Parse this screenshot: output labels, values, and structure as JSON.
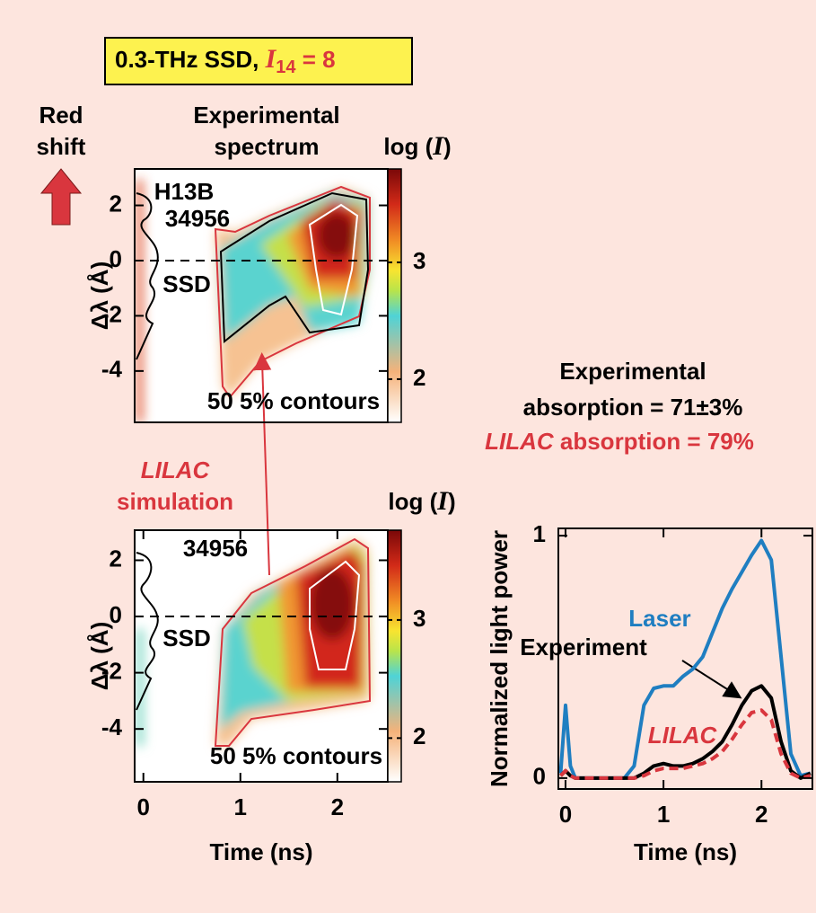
{
  "title_box": {
    "text": "0.3-THz SSD, ",
    "symbol": "I",
    "subscript": "14",
    "suffix": " = 8"
  },
  "red_shift_label": [
    "Red",
    "shift"
  ],
  "absorption": {
    "experimental": [
      "Experimental",
      "absorption = 71±3%"
    ],
    "lilac": [
      "LILAC",
      " absorption = 79%"
    ]
  },
  "chart_data": [
    {
      "type": "heatmap",
      "title": [
        "Experimental",
        "spectrum"
      ],
      "ylabel": "Δλ (Å)",
      "xlim": [
        -0.09,
        2.52
      ],
      "ylim": [
        -5.86,
        3.32
      ],
      "yticks": [
        2,
        0,
        -2,
        -4
      ],
      "colorbar": {
        "label": [
          "log (",
          "I",
          ")"
        ],
        "lim": [
          1.63,
          3.8
        ],
        "ticks": [
          3,
          2
        ]
      },
      "annotations": [
        "H13B",
        "34956",
        "SSD",
        "50 5% contours"
      ]
    },
    {
      "type": "heatmap",
      "title": [
        "LILAC",
        "simulation"
      ],
      "ylabel": "Δλ (Å)",
      "xlabel": "Time (ns)",
      "xlim": [
        -0.09,
        2.52
      ],
      "ylim": [
        -5.88,
        3.07
      ],
      "yticks": [
        2,
        0,
        -2,
        -4
      ],
      "xticks": [
        0,
        1,
        2
      ],
      "colorbar": {
        "label": [
          "log (",
          "I",
          ")"
        ],
        "lim": [
          1.63,
          3.76
        ],
        "ticks": [
          3,
          2
        ]
      },
      "annotations": [
        "34956",
        "SSD",
        "50 5% contours"
      ]
    },
    {
      "type": "line",
      "ylabel": "Normalized light power",
      "xlabel": "Time (ns)",
      "xlim": [
        -0.073,
        2.52
      ],
      "ylim": [
        -0.045,
        1.03
      ],
      "xticks": [
        0,
        1,
        2
      ],
      "yticks": [
        0,
        1
      ],
      "x": [
        -0.05,
        0,
        0.05,
        0.1,
        0.2,
        0.3,
        0.4,
        0.5,
        0.6,
        0.7,
        0.8,
        0.9,
        1.0,
        1.1,
        1.2,
        1.3,
        1.4,
        1.5,
        1.6,
        1.7,
        1.8,
        1.9,
        2.0,
        2.1,
        2.2,
        2.3,
        2.4,
        2.5
      ],
      "series": [
        {
          "name": "Laser",
          "color": "#1f7ec1",
          "style": "solid",
          "values": [
            0.02,
            0.3,
            0.05,
            0,
            0,
            0,
            0,
            0,
            0,
            0.05,
            0.3,
            0.37,
            0.38,
            0.38,
            0.42,
            0.45,
            0.5,
            0.6,
            0.7,
            0.78,
            0.85,
            0.92,
            0.98,
            0.9,
            0.5,
            0.1,
            0.01,
            0.02
          ]
        },
        {
          "name": "Experiment",
          "color": "#000000",
          "style": "solid",
          "values": [
            0.01,
            0.03,
            0.01,
            0,
            0,
            0,
            0,
            0,
            0,
            0,
            0.02,
            0.05,
            0.06,
            0.05,
            0.05,
            0.06,
            0.08,
            0.11,
            0.15,
            0.22,
            0.3,
            0.36,
            0.38,
            0.33,
            0.15,
            0.03,
            0,
            0.02
          ]
        },
        {
          "name": "LILAC",
          "color": "#d9363e",
          "style": "dashed",
          "values": [
            0.01,
            0.03,
            0.01,
            0,
            0,
            0,
            0,
            0,
            0,
            0,
            0.01,
            0.03,
            0.04,
            0.04,
            0.04,
            0.05,
            0.06,
            0.08,
            0.11,
            0.16,
            0.22,
            0.27,
            0.28,
            0.24,
            0.1,
            0.02,
            0,
            0.01
          ]
        }
      ]
    }
  ]
}
